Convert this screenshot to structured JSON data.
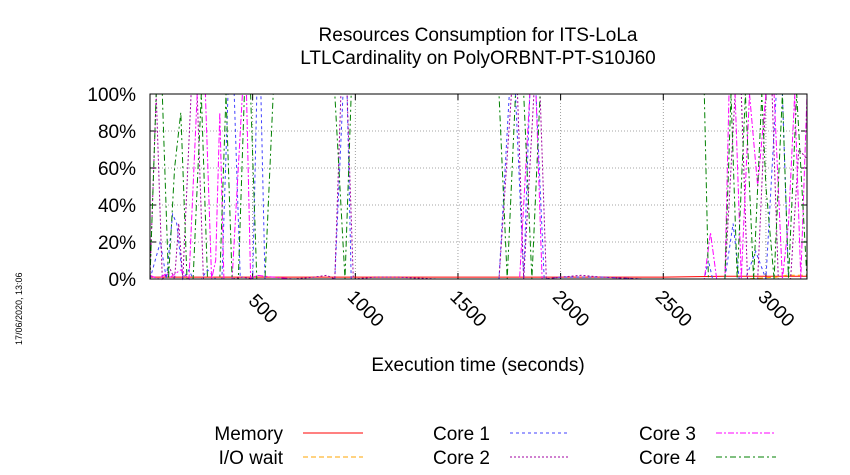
{
  "chart_data": {
    "type": "line",
    "title": [
      "Resources Consumption for ITS-LoLa",
      "LTLCardinality on PolyORBNT-PT-S10J60"
    ],
    "xlabel": "Execution time (seconds)",
    "ylabel": "",
    "xlim": [
      0,
      3200
    ],
    "ylim": [
      0,
      100
    ],
    "x_ticks": [
      500,
      1000,
      1500,
      2000,
      2500,
      3000
    ],
    "x_tick_labels": [
      "500",
      "1000",
      "1500",
      "2000",
      "2500",
      "3000"
    ],
    "y_ticks": [
      0,
      20,
      40,
      60,
      80,
      100
    ],
    "y_tick_labels": [
      "0%",
      "20%",
      "40%",
      "60%",
      "80%",
      "100%"
    ],
    "grid": true,
    "legend_placement": "bottom",
    "timestamp": "17/06/2020, 13:06",
    "series": [
      {
        "name": "Memory",
        "color": "#ff0000",
        "dash": "",
        "points": [
          [
            0,
            1
          ],
          [
            500,
            1
          ],
          [
            1000,
            1
          ],
          [
            1500,
            1
          ],
          [
            2000,
            1
          ],
          [
            2500,
            1
          ],
          [
            2800,
            1.5
          ],
          [
            3000,
            1.5
          ],
          [
            3200,
            1.5
          ]
        ]
      },
      {
        "name": "I/O wait",
        "color": "#ffa500",
        "dash": "5,3",
        "points": [
          [
            0,
            0
          ],
          [
            800,
            0
          ],
          [
            1600,
            0
          ],
          [
            2700,
            0
          ],
          [
            2900,
            0
          ],
          [
            3050,
            1
          ],
          [
            3100,
            2
          ],
          [
            3200,
            2
          ]
        ]
      },
      {
        "name": "Core 1",
        "color": "#4040ff",
        "dash": "3,3",
        "points": [
          [
            0,
            0
          ],
          [
            50,
            20
          ],
          [
            80,
            0
          ],
          [
            110,
            35
          ],
          [
            130,
            30
          ],
          [
            160,
            0
          ],
          [
            190,
            5
          ],
          [
            210,
            0
          ],
          [
            250,
            0
          ],
          [
            280,
            5
          ],
          [
            320,
            0
          ],
          [
            350,
            0
          ],
          [
            380,
            100
          ],
          [
            410,
            100
          ],
          [
            440,
            0
          ],
          [
            470,
            0
          ],
          [
            500,
            0
          ],
          [
            520,
            100
          ],
          [
            540,
            100
          ],
          [
            560,
            0
          ],
          [
            600,
            0
          ],
          [
            700,
            0
          ],
          [
            800,
            0
          ],
          [
            900,
            0
          ],
          [
            940,
            100
          ],
          [
            960,
            100
          ],
          [
            980,
            0
          ],
          [
            1100,
            0
          ],
          [
            1300,
            0
          ],
          [
            1500,
            0
          ],
          [
            1700,
            0
          ],
          [
            1750,
            100
          ],
          [
            1780,
            100
          ],
          [
            1820,
            0
          ],
          [
            1850,
            100
          ],
          [
            1880,
            100
          ],
          [
            1920,
            0
          ],
          [
            2000,
            1
          ],
          [
            2100,
            1
          ],
          [
            2200,
            1
          ],
          [
            2400,
            0
          ],
          [
            2600,
            0
          ],
          [
            2700,
            0
          ],
          [
            2720,
            10
          ],
          [
            2740,
            0
          ],
          [
            2800,
            0
          ],
          [
            2840,
            30
          ],
          [
            2870,
            0
          ],
          [
            2900,
            0
          ],
          [
            2950,
            15
          ],
          [
            3000,
            0
          ],
          [
            3050,
            100
          ],
          [
            3080,
            100
          ],
          [
            3110,
            0
          ],
          [
            3150,
            0
          ],
          [
            3200,
            0
          ]
        ]
      },
      {
        "name": "Core 2",
        "color": "#a000a0",
        "dash": "2,2",
        "points": [
          [
            0,
            1
          ],
          [
            30,
            100
          ],
          [
            60,
            0
          ],
          [
            100,
            5
          ],
          [
            120,
            0
          ],
          [
            140,
            30
          ],
          [
            160,
            0
          ],
          [
            200,
            100
          ],
          [
            230,
            100
          ],
          [
            260,
            0
          ],
          [
            300,
            0
          ],
          [
            330,
            0
          ],
          [
            360,
            0
          ],
          [
            400,
            0
          ],
          [
            450,
            1
          ],
          [
            500,
            0
          ],
          [
            600,
            0
          ],
          [
            700,
            0
          ],
          [
            800,
            1
          ],
          [
            860,
            2
          ],
          [
            900,
            0
          ],
          [
            930,
            100
          ],
          [
            960,
            100
          ],
          [
            990,
            0
          ],
          [
            1100,
            1
          ],
          [
            1200,
            1
          ],
          [
            1400,
            0
          ],
          [
            1600,
            0
          ],
          [
            1700,
            0
          ],
          [
            1760,
            100
          ],
          [
            1790,
            100
          ],
          [
            1820,
            0
          ],
          [
            1870,
            100
          ],
          [
            1900,
            100
          ],
          [
            1930,
            0
          ],
          [
            2000,
            1
          ],
          [
            2100,
            2
          ],
          [
            2200,
            1
          ],
          [
            2400,
            0
          ],
          [
            2600,
            0
          ],
          [
            2700,
            0
          ],
          [
            2800,
            0
          ],
          [
            2850,
            100
          ],
          [
            2880,
            100
          ],
          [
            2910,
            0
          ],
          [
            2960,
            0
          ],
          [
            3000,
            100
          ],
          [
            3030,
            100
          ],
          [
            3060,
            0
          ],
          [
            3120,
            0
          ],
          [
            3160,
            70
          ],
          [
            3200,
            65
          ]
        ]
      },
      {
        "name": "Core 3",
        "color": "#ff00ff",
        "dash": "6,2,2,2",
        "points": [
          [
            0,
            2
          ],
          [
            40,
            0
          ],
          [
            80,
            3
          ],
          [
            100,
            1
          ],
          [
            150,
            5
          ],
          [
            190,
            0
          ],
          [
            230,
            100
          ],
          [
            270,
            100
          ],
          [
            300,
            0
          ],
          [
            320,
            10
          ],
          [
            340,
            90
          ],
          [
            360,
            0
          ],
          [
            400,
            0
          ],
          [
            450,
            100
          ],
          [
            470,
            100
          ],
          [
            490,
            0
          ],
          [
            520,
            2
          ],
          [
            600,
            1
          ],
          [
            700,
            0
          ],
          [
            800,
            0
          ],
          [
            900,
            0
          ],
          [
            1000,
            0
          ],
          [
            1200,
            0
          ],
          [
            1400,
            0
          ],
          [
            1600,
            0
          ],
          [
            1700,
            0
          ],
          [
            1800,
            0
          ],
          [
            1850,
            100
          ],
          [
            1880,
            100
          ],
          [
            1910,
            0
          ],
          [
            2000,
            0
          ],
          [
            2200,
            0
          ],
          [
            2400,
            0
          ],
          [
            2600,
            0
          ],
          [
            2700,
            0
          ],
          [
            2730,
            25
          ],
          [
            2760,
            0
          ],
          [
            2800,
            0
          ],
          [
            2820,
            100
          ],
          [
            2850,
            100
          ],
          [
            2880,
            0
          ],
          [
            2920,
            100
          ],
          [
            2960,
            50
          ],
          [
            3000,
            100
          ],
          [
            3040,
            100
          ],
          [
            3080,
            0
          ],
          [
            3110,
            30
          ],
          [
            3140,
            100
          ],
          [
            3170,
            0
          ],
          [
            3200,
            100
          ]
        ]
      },
      {
        "name": "Core 4",
        "color": "#008000",
        "dash": "6,3,2,3",
        "points": [
          [
            0,
            0
          ],
          [
            30,
            100
          ],
          [
            60,
            100
          ],
          [
            90,
            0
          ],
          [
            120,
            60
          ],
          [
            150,
            90
          ],
          [
            180,
            0
          ],
          [
            210,
            0
          ],
          [
            250,
            100
          ],
          [
            280,
            0
          ],
          [
            300,
            0
          ],
          [
            340,
            0
          ],
          [
            370,
            100
          ],
          [
            400,
            0
          ],
          [
            430,
            0
          ],
          [
            460,
            100
          ],
          [
            490,
            100
          ],
          [
            520,
            0
          ],
          [
            560,
            0
          ],
          [
            600,
            100
          ],
          [
            700,
            100
          ],
          [
            800,
            100
          ],
          [
            900,
            100
          ],
          [
            950,
            0
          ],
          [
            980,
            100
          ],
          [
            1100,
            100
          ],
          [
            1200,
            100
          ],
          [
            1400,
            100
          ],
          [
            1600,
            100
          ],
          [
            1700,
            100
          ],
          [
            1740,
            0
          ],
          [
            1780,
            100
          ],
          [
            1820,
            100
          ],
          [
            1860,
            0
          ],
          [
            1900,
            100
          ],
          [
            2000,
            100
          ],
          [
            2200,
            100
          ],
          [
            2400,
            100
          ],
          [
            2600,
            100
          ],
          [
            2700,
            100
          ],
          [
            2720,
            0
          ],
          [
            2760,
            0
          ],
          [
            2800,
            0
          ],
          [
            2830,
            100
          ],
          [
            2860,
            0
          ],
          [
            2900,
            100
          ],
          [
            2940,
            0
          ],
          [
            2980,
            100
          ],
          [
            3000,
            50
          ],
          [
            3040,
            0
          ],
          [
            3080,
            100
          ],
          [
            3110,
            0
          ],
          [
            3150,
            100
          ],
          [
            3200,
            0
          ]
        ]
      }
    ]
  }
}
